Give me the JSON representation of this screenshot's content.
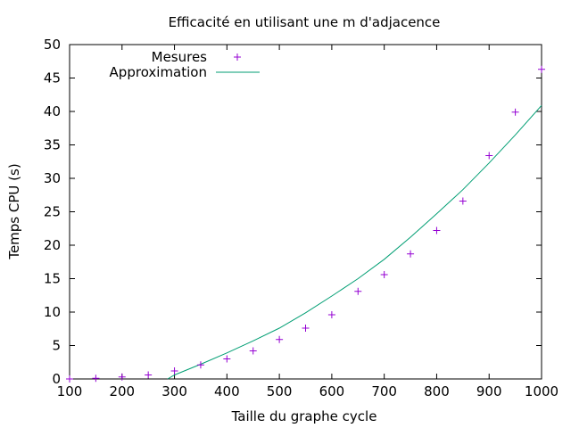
{
  "chart_data": {
    "type": "scatter",
    "title": "Efficacité en utilisant une m d'adjacence",
    "xlabel": "Taille du graphe cycle",
    "ylabel": "Temps CPU (s)",
    "xlim": [
      100,
      1000
    ],
    "ylim": [
      0,
      50
    ],
    "xticks": [
      "100",
      "200",
      "300",
      "400",
      "500",
      "600",
      "700",
      "800",
      "900",
      "1000"
    ],
    "yticks": [
      "0",
      "5",
      "10",
      "15",
      "20",
      "25",
      "30",
      "35",
      "40",
      "45",
      "50"
    ],
    "grid": false,
    "legend_position": "top-left",
    "series": [
      {
        "name": "Mesures",
        "kind": "points",
        "marker": "plus",
        "color": "#9400d3",
        "x": [
          100,
          150,
          200,
          250,
          300,
          350,
          400,
          450,
          500,
          550,
          600,
          650,
          700,
          750,
          800,
          850,
          900,
          950,
          1000
        ],
        "y": [
          0.0,
          0.1,
          0.3,
          0.6,
          1.2,
          2.1,
          3.0,
          4.2,
          5.9,
          7.6,
          9.6,
          13.1,
          15.6,
          18.7,
          22.2,
          26.6,
          33.4,
          39.9,
          46.3
        ]
      },
      {
        "name": "Approximation",
        "kind": "line",
        "color": "#009e73",
        "x": [
          287,
          300,
          350,
          400,
          450,
          500,
          550,
          600,
          650,
          700,
          750,
          800,
          850,
          900,
          950,
          1000
        ],
        "y": [
          0.0,
          0.6,
          2.2,
          3.9,
          5.7,
          7.6,
          9.9,
          12.4,
          15.0,
          17.9,
          21.2,
          24.7,
          28.3,
          32.3,
          36.5,
          40.9
        ]
      }
    ]
  }
}
